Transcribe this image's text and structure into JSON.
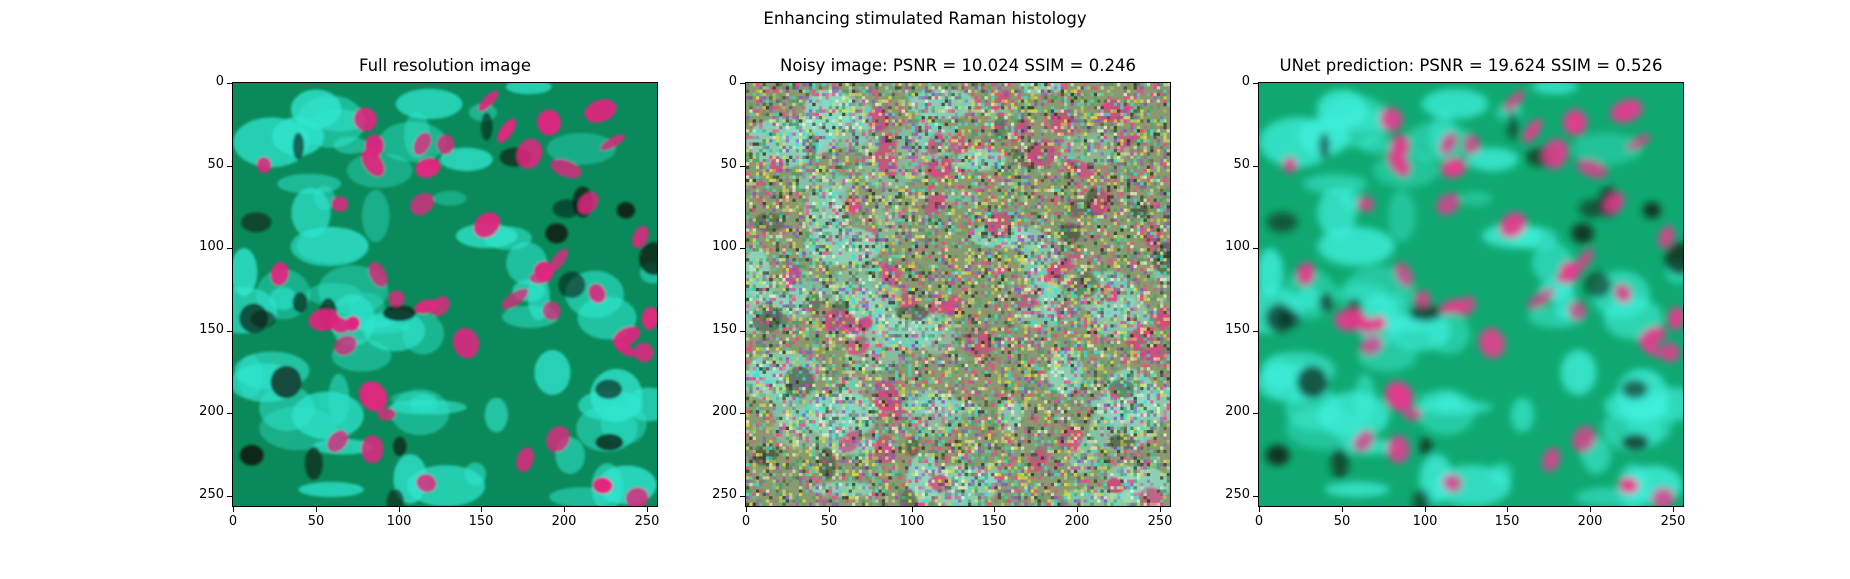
{
  "figure": {
    "suptitle": "Enhancing stimulated Raman histology"
  },
  "chart_data": [
    {
      "type": "heatmap",
      "title": "Full resolution image",
      "xlabel": "",
      "ylabel": "",
      "xlim": [
        0,
        256
      ],
      "ylim": [
        256,
        0
      ],
      "xticks": [
        "0",
        "50",
        "100",
        "150",
        "200",
        "250"
      ],
      "yticks": [
        "0",
        "50",
        "100",
        "150",
        "200",
        "250"
      ],
      "style": "sharp",
      "colors": {
        "background": "#0a8a5a",
        "nuclei": "#e0257f",
        "cytoplasm": "#2fe6cf",
        "dark": "#0b1a10"
      }
    },
    {
      "type": "heatmap",
      "title": "Noisy image: PSNR = 10.024 SSIM = 0.246",
      "xlabel": "",
      "ylabel": "",
      "xlim": [
        0,
        256
      ],
      "ylim": [
        256,
        0
      ],
      "xticks": [
        "0",
        "50",
        "100",
        "150",
        "200",
        "250"
      ],
      "yticks": [
        "0",
        "50",
        "100",
        "150",
        "200",
        "250"
      ],
      "metrics": {
        "PSNR": 10.024,
        "SSIM": 0.246
      },
      "style": "noisy",
      "colors": {
        "background": "#8a9a70",
        "nuclei": "#c8507a",
        "cytoplasm": "#8fdcc8",
        "dark": "#4a5a40"
      }
    },
    {
      "type": "heatmap",
      "title": "UNet prediction: PSNR = 19.624 SSIM = 0.526",
      "xlabel": "",
      "ylabel": "",
      "xlim": [
        0,
        256
      ],
      "ylim": [
        256,
        0
      ],
      "xticks": [
        "0",
        "50",
        "100",
        "150",
        "200",
        "250"
      ],
      "yticks": [
        "0",
        "50",
        "100",
        "150",
        "200",
        "250"
      ],
      "metrics": {
        "PSNR": 19.624,
        "SSIM": 0.526
      },
      "style": "smooth",
      "colors": {
        "background": "#0fa870",
        "nuclei": "#e83a8e",
        "cytoplasm": "#3ff0dc",
        "dark": "#0e2416"
      }
    }
  ]
}
